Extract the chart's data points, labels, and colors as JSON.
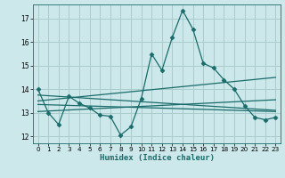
{
  "xlabel": "Humidex (Indice chaleur)",
  "bg_color": "#cce8ea",
  "grid_color": "#aacccc",
  "line_color": "#1a6b6b",
  "xlim": [
    -0.5,
    23.5
  ],
  "ylim": [
    11.7,
    17.6
  ],
  "yticks": [
    12,
    13,
    14,
    15,
    16,
    17
  ],
  "xticks": [
    0,
    1,
    2,
    3,
    4,
    5,
    6,
    7,
    8,
    9,
    10,
    11,
    12,
    13,
    14,
    15,
    16,
    17,
    18,
    19,
    20,
    21,
    22,
    23
  ],
  "line1_x": [
    0,
    1,
    2,
    3,
    4,
    5,
    6,
    7,
    8,
    9,
    10,
    11,
    12,
    13,
    14,
    15,
    16,
    17,
    18,
    19,
    20,
    21,
    22,
    23
  ],
  "line1_y": [
    14.0,
    13.0,
    12.5,
    13.7,
    13.4,
    13.2,
    12.9,
    12.85,
    12.05,
    12.4,
    13.6,
    15.5,
    14.8,
    16.2,
    17.35,
    16.55,
    15.1,
    14.9,
    14.4,
    14.0,
    13.3,
    12.8,
    12.7,
    12.8
  ],
  "line2_x": [
    0,
    23
  ],
  "line2_y": [
    13.05,
    13.55
  ],
  "line3_x": [
    0,
    23
  ],
  "line3_y": [
    13.35,
    13.05
  ],
  "line4_x": [
    0,
    23
  ],
  "line4_y": [
    13.5,
    14.5
  ],
  "line5_x": [
    0,
    23
  ],
  "line5_y": [
    13.75,
    13.1
  ]
}
